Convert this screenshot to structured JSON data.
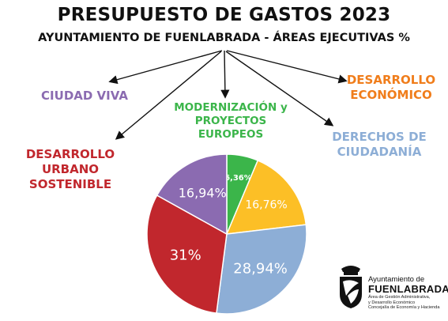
{
  "title": "PRESUPUESTO DE GASTOS 2023",
  "subtitle": "AYUNTAMIENTO DE FUENLABRADA - ÁREAS EJECUTIVAS %",
  "chart_data": {
    "type": "pie",
    "title": "PRESUPUESTO DE GASTOS 2023",
    "subtitle": "AYUNTAMIENTO DE FUENLABRADA - ÁREAS EJECUTIVAS %",
    "slices": [
      {
        "name": "MODERNIZACIÓN y\nPROYECTOS\nEUROPEOS",
        "value": 6.36,
        "label": "6,36%",
        "color": "#3bb54a"
      },
      {
        "name": "DESARROLLO\nECONÓMICO",
        "value": 16.76,
        "label": "16,76%",
        "color": "#fcbf26"
      },
      {
        "name": "DERECHOS DE\nCIUDADANÍA",
        "value": 28.94,
        "label": "28,94%",
        "color": "#8daed6"
      },
      {
        "name": "DESARROLLO\nURBANO\nSOSTENIBLE",
        "value": 31,
        "label": "31%",
        "color": "#c1272d"
      },
      {
        "name": "CIUDAD VIVA",
        "value": 16.94,
        "label": "16,94%",
        "color": "#8b6bb1"
      }
    ],
    "label_colors": {
      "CIUDAD VIVA": "#8b6bb1",
      "MODERNIZACIÓN y PROYECTOS EUROPEOS": "#3bb54a",
      "DESARROLLO ECONÓMICO": "#f07d1b",
      "DERECHOS DE CIUDADANÍA": "#8daed6",
      "DESARROLLO URBANO SOSTENIBLE": "#c1272d"
    }
  },
  "labels": [
    {
      "text": "CIUDAD VIVA",
      "color": "#8b6bb1"
    },
    {
      "text": "MODERNIZACIÓN y\nPROYECTOS\nEUROPEOS",
      "color": "#3bb54a"
    },
    {
      "text": "DESARROLLO\nECONÓMICO",
      "color": "#f07d1b"
    },
    {
      "text": "DERECHOS DE\nCIUDADANÍA",
      "color": "#8daed6"
    },
    {
      "text": "DESARROLLO\nURBANO\nSOSTENIBLE",
      "color": "#c1272d"
    }
  ],
  "logo": {
    "title": "Ayuntamiento de",
    "name": "FUENLABRADA",
    "sub": "Área de Gestión Administrativa,\ny Desarrollo Económico\nConcejalía de Economía y Hacienda",
    "icon": "fuenlabrada-emblem-icon"
  }
}
